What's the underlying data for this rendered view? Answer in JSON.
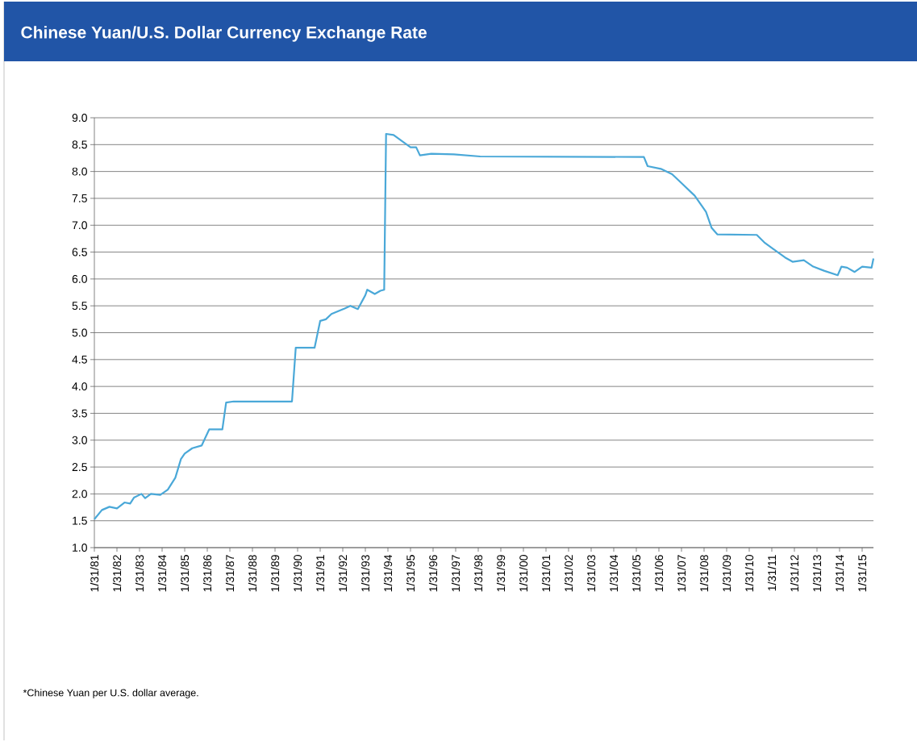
{
  "chart_data": {
    "type": "line",
    "title": "Chinese Yuan/U.S. Dollar Currency Exchange Rate",
    "annotations": [
      "*Chinese Yuan per U.S. dollar average."
    ],
    "x": [
      "1981-01-31",
      "1981-06",
      "1981-10",
      "1982-02",
      "1982-06",
      "1982-09",
      "1982-11",
      "1983-03",
      "1983-05",
      "1983-08",
      "1984-01",
      "1984-05",
      "1984-09",
      "1984-12",
      "1985-02",
      "1985-06",
      "1985-11",
      "1986-03",
      "1986-10",
      "1986-12",
      "1987-04",
      "1989-11",
      "1990-01",
      "1990-11",
      "1991-02",
      "1991-05",
      "1991-08",
      "1992-03",
      "1992-06",
      "1992-10",
      "1993-02",
      "1993-03",
      "1993-07",
      "1993-10",
      "1993-12",
      "1994-01",
      "1994-05",
      "1994-10",
      "1995-02",
      "1995-05",
      "1995-07",
      "1996-01",
      "1997-01",
      "1998-03",
      "2005-06",
      "2005-08",
      "2006-03",
      "2006-09",
      "2007-03",
      "2007-09",
      "2008-03",
      "2008-06",
      "2008-09",
      "2010-06",
      "2010-10",
      "2011-03",
      "2011-09",
      "2012-01",
      "2012-07",
      "2012-12",
      "2013-06",
      "2014-01",
      "2014-03",
      "2014-06",
      "2014-10",
      "2015-02",
      "2015-07",
      "2015-08"
    ],
    "series": [
      {
        "color": "#4aa8d8",
        "values": [
          1.53,
          1.7,
          1.76,
          1.73,
          1.84,
          1.82,
          1.93,
          2.0,
          1.92,
          2.0,
          1.98,
          2.08,
          2.3,
          2.65,
          2.75,
          2.85,
          2.9,
          3.2,
          3.2,
          3.7,
          3.72,
          3.72,
          4.72,
          4.72,
          5.22,
          5.25,
          5.35,
          5.45,
          5.5,
          5.44,
          5.7,
          5.8,
          5.72,
          5.78,
          5.8,
          8.7,
          8.68,
          8.55,
          8.45,
          8.45,
          8.3,
          8.33,
          8.32,
          8.28,
          8.27,
          8.1,
          8.05,
          7.95,
          7.75,
          7.55,
          7.25,
          6.95,
          6.83,
          6.82,
          6.68,
          6.55,
          6.4,
          6.32,
          6.35,
          6.23,
          6.15,
          6.07,
          6.23,
          6.21,
          6.13,
          6.23,
          6.21,
          6.38
        ]
      }
    ],
    "xlim": [
      "1981-01-31",
      "2015-08"
    ],
    "xticks": [
      {
        "value": "1981-01-31",
        "label": "1/31/81"
      },
      {
        "value": "1982-01-31",
        "label": "1/31/82"
      },
      {
        "value": "1983-01-31",
        "label": "1/31/83"
      },
      {
        "value": "1984-01-31",
        "label": "1/31/84"
      },
      {
        "value": "1985-01-31",
        "label": "1/31/85"
      },
      {
        "value": "1986-01-31",
        "label": "1/31/86"
      },
      {
        "value": "1987-01-31",
        "label": "1/31/87"
      },
      {
        "value": "1988-01-31",
        "label": "1/31/88"
      },
      {
        "value": "1989-01-31",
        "label": "1/31/89"
      },
      {
        "value": "1990-01-31",
        "label": "1/31/90"
      },
      {
        "value": "1991-01-31",
        "label": "1/31/91"
      },
      {
        "value": "1992-01-31",
        "label": "1/31/92"
      },
      {
        "value": "1993-01-31",
        "label": "1/31/93"
      },
      {
        "value": "1994-01-31",
        "label": "1/31/94"
      },
      {
        "value": "1995-01-31",
        "label": "1/31/95"
      },
      {
        "value": "1996-01-31",
        "label": "1/31/96"
      },
      {
        "value": "1997-01-31",
        "label": "1/31/97"
      },
      {
        "value": "1998-01-31",
        "label": "1/31/98"
      },
      {
        "value": "1999-01-31",
        "label": "1/31/99"
      },
      {
        "value": "2000-01-31",
        "label": "1/31/00"
      },
      {
        "value": "2001-01-31",
        "label": "1/31/01"
      },
      {
        "value": "2002-01-31",
        "label": "1/31/02"
      },
      {
        "value": "2003-01-31",
        "label": "1/31/03"
      },
      {
        "value": "2004-01-31",
        "label": "1/31/04"
      },
      {
        "value": "2005-01-31",
        "label": "1/31/05"
      },
      {
        "value": "2006-01-31",
        "label": "1/31/06"
      },
      {
        "value": "2007-01-31",
        "label": "1/31/07"
      },
      {
        "value": "2008-01-31",
        "label": "1/31/08"
      },
      {
        "value": "2009-01-31",
        "label": "1/31/09"
      },
      {
        "value": "2010-01-31",
        "label": "1/31/10"
      },
      {
        "value": "2011-01-31",
        "label": "1/31/11"
      },
      {
        "value": "2012-01-31",
        "label": "1/31/12"
      },
      {
        "value": "2013-01-31",
        "label": "1/31/13"
      },
      {
        "value": "2014-01-31",
        "label": "1/31/14"
      },
      {
        "value": "2015-01-31",
        "label": "1/31/15"
      }
    ],
    "ylim": [
      1,
      9
    ],
    "yticks": [
      {
        "value": 1,
        "label": "1.0"
      },
      {
        "value": 1.5,
        "label": "1.5"
      },
      {
        "value": 2,
        "label": "2.0"
      },
      {
        "value": 2.5,
        "label": "2.5"
      },
      {
        "value": 3,
        "label": "3.0"
      },
      {
        "value": 3.5,
        "label": "3.5"
      },
      {
        "value": 4,
        "label": "4.0"
      },
      {
        "value": 4.5,
        "label": "4.5"
      },
      {
        "value": 5,
        "label": "5.0"
      },
      {
        "value": 5.5,
        "label": "5.5"
      },
      {
        "value": 6,
        "label": "6.0"
      },
      {
        "value": 6.5,
        "label": "6.5"
      },
      {
        "value": 7,
        "label": "7.0"
      },
      {
        "value": 7.5,
        "label": "7.5"
      },
      {
        "value": 8,
        "label": "8.0"
      },
      {
        "value": 8.5,
        "label": "8.5"
      },
      {
        "value": 9,
        "label": "9.0"
      }
    ],
    "grid": "y",
    "marker": "none",
    "line_style": "solid"
  }
}
